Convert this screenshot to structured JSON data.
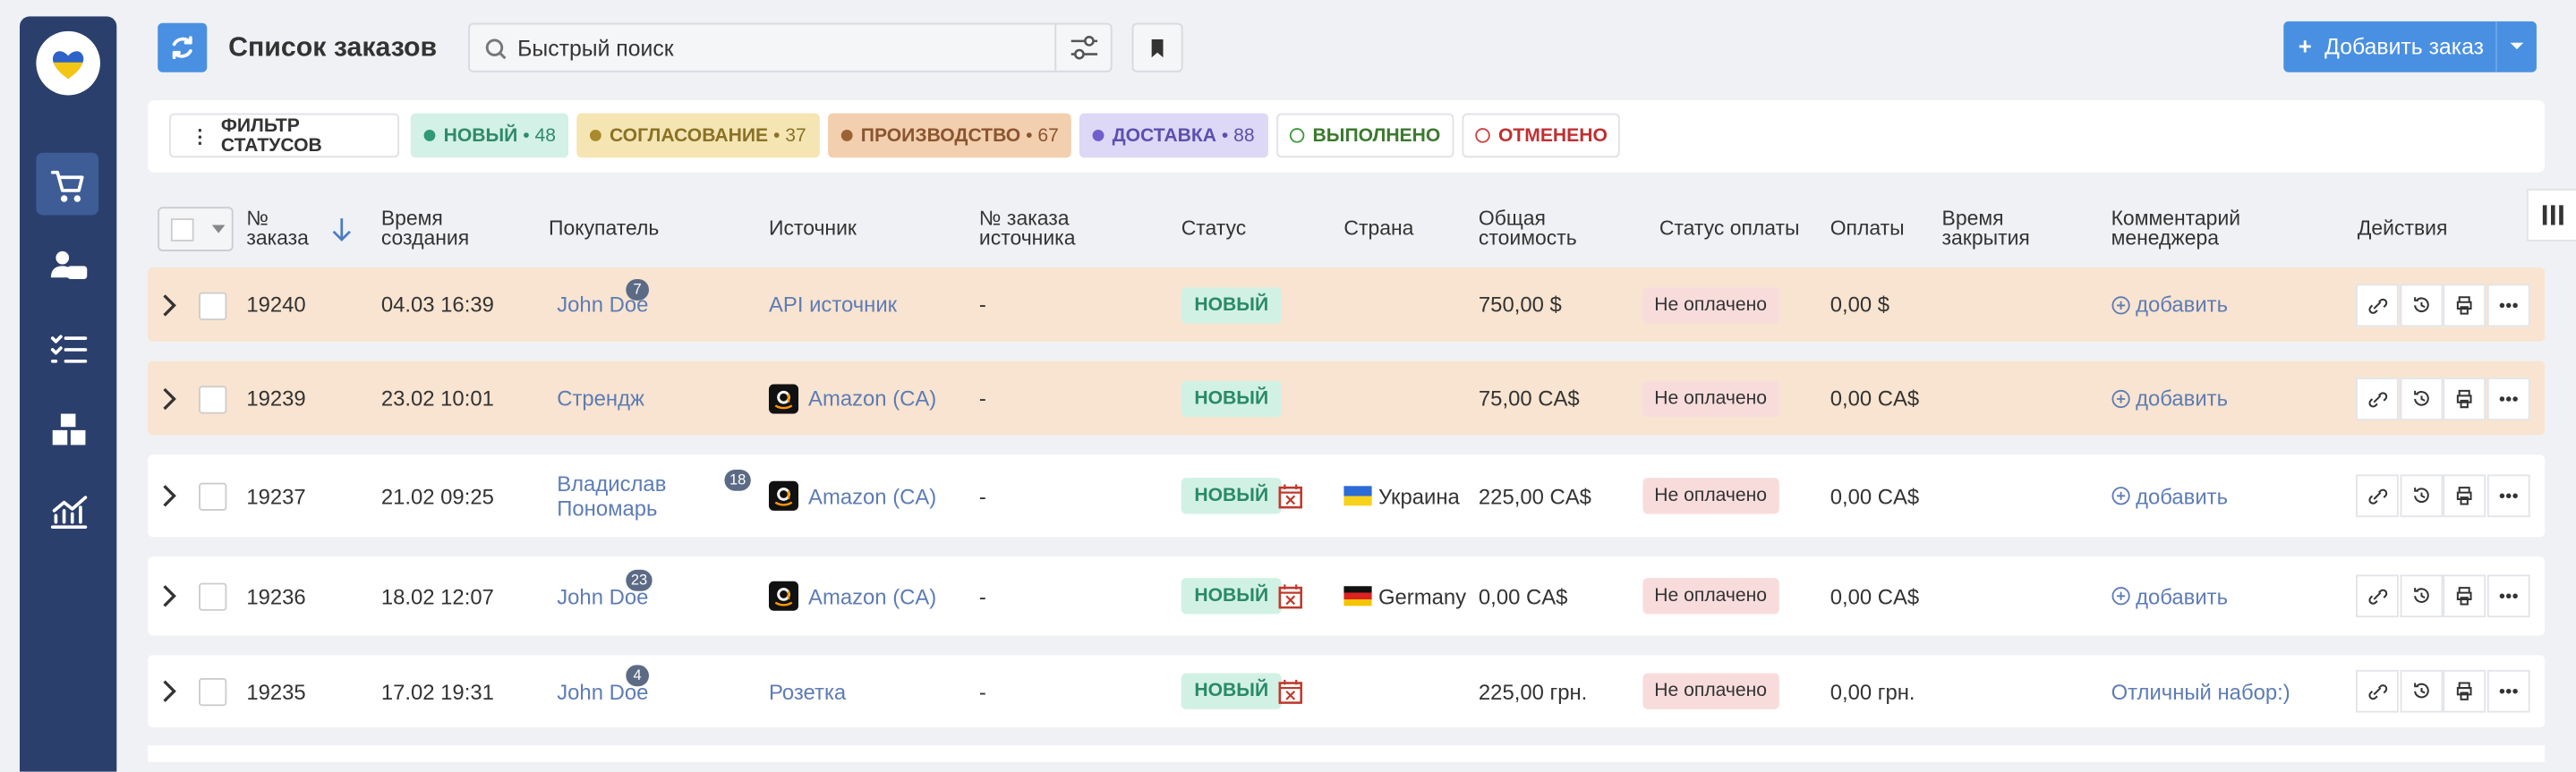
{
  "header": {
    "title": "Список заказов",
    "search_placeholder": "Быстрый поиск",
    "add_button": "Добавить заказ"
  },
  "filters": {
    "label": "ФИЛЬТР СТАТУСОВ",
    "chips": [
      {
        "name": "НОВЫЙ",
        "count": 48,
        "bg": "#d3f1e6",
        "dot": "#2f9a74",
        "fg": "#2f8a6a"
      },
      {
        "name": "СОГЛАСОВАНИЕ",
        "count": 37,
        "bg": "#f5e5b3",
        "dot": "#a98a2c",
        "fg": "#8a7125"
      },
      {
        "name": "ПРОИЗВОДСТВО",
        "count": 67,
        "bg": "#f2cfae",
        "dot": "#9a6235",
        "fg": "#8a5530"
      },
      {
        "name": "ДОСТАВКА",
        "count": 88,
        "bg": "#dcd8f6",
        "dot": "#6f5ecb",
        "fg": "#5d4fb0"
      },
      {
        "name": "ВЫПОЛНЕНО",
        "bg": "#ffffff",
        "dot": "#3c9a3c",
        "fg": "#3b7a2e"
      },
      {
        "name": "ОТМЕНЕНО",
        "bg": "#ffffff",
        "dot": "#d04040",
        "fg": "#c03030"
      }
    ]
  },
  "table": {
    "columns": [
      "№ заказа",
      "Время создания",
      "Покупатель",
      "Источник",
      "№ заказа источника",
      "Статус",
      "Страна",
      "Общая стоимость",
      "Статус оплаты",
      "Оплаты",
      "Время закрытия",
      "Комментарий менеджера",
      "Действия"
    ],
    "rows": [
      {
        "id": "19240",
        "created": "04.03 16:39",
        "buyer": "John Doe",
        "buyer_badge": 7,
        "source": "API источник",
        "source_number": "-",
        "status": "НОВЫЙ",
        "total": "750,00 $",
        "payment_status": "Не оплачено",
        "paid": "0,00 $",
        "comment": "добавить",
        "comment_action": true,
        "highlighted": true
      },
      {
        "id": "19239",
        "created": "23.02 10:01",
        "buyer": "Стрендж",
        "source": "Amazon (CA)",
        "source_icon": "amazon",
        "source_number": "-",
        "status": "НОВЫЙ",
        "total": "75,00 CA$",
        "payment_status": "Не оплачено",
        "paid": "0,00 CA$",
        "comment": "добавить",
        "comment_action": true,
        "highlighted": true
      },
      {
        "id": "19237",
        "created": "21.02 09:25",
        "buyer": "Владислав Пономарь",
        "buyer_badge": 18,
        "source": "Amazon (CA)",
        "source_icon": "amazon",
        "source_number": "-",
        "status": "НОВЫЙ",
        "overdue": true,
        "country": "Украина",
        "flag": "ua",
        "total": "225,00 CA$",
        "payment_status": "Не оплачено",
        "paid": "0,00 CA$",
        "comment": "добавить",
        "comment_action": true
      },
      {
        "id": "19236",
        "created": "18.02 12:07",
        "buyer": "John Doe",
        "buyer_badge": 23,
        "source": "Amazon (CA)",
        "source_icon": "amazon",
        "source_number": "-",
        "status": "НОВЫЙ",
        "overdue": true,
        "country": "Germany",
        "flag": "de",
        "total": "0,00 CA$",
        "payment_status": "Не оплачено",
        "paid": "0,00 CA$",
        "comment": "добавить",
        "comment_action": true
      },
      {
        "id": "19235",
        "created": "17.02 19:31",
        "buyer": "John Doe",
        "buyer_badge": 4,
        "source": "Розетка",
        "source_number": "-",
        "status": "НОВЫЙ",
        "overdue": true,
        "total": "225,00 грн.",
        "payment_status": "Не оплачено",
        "paid": "0,00 грн.",
        "comment": "Отличный набор:)"
      }
    ]
  }
}
